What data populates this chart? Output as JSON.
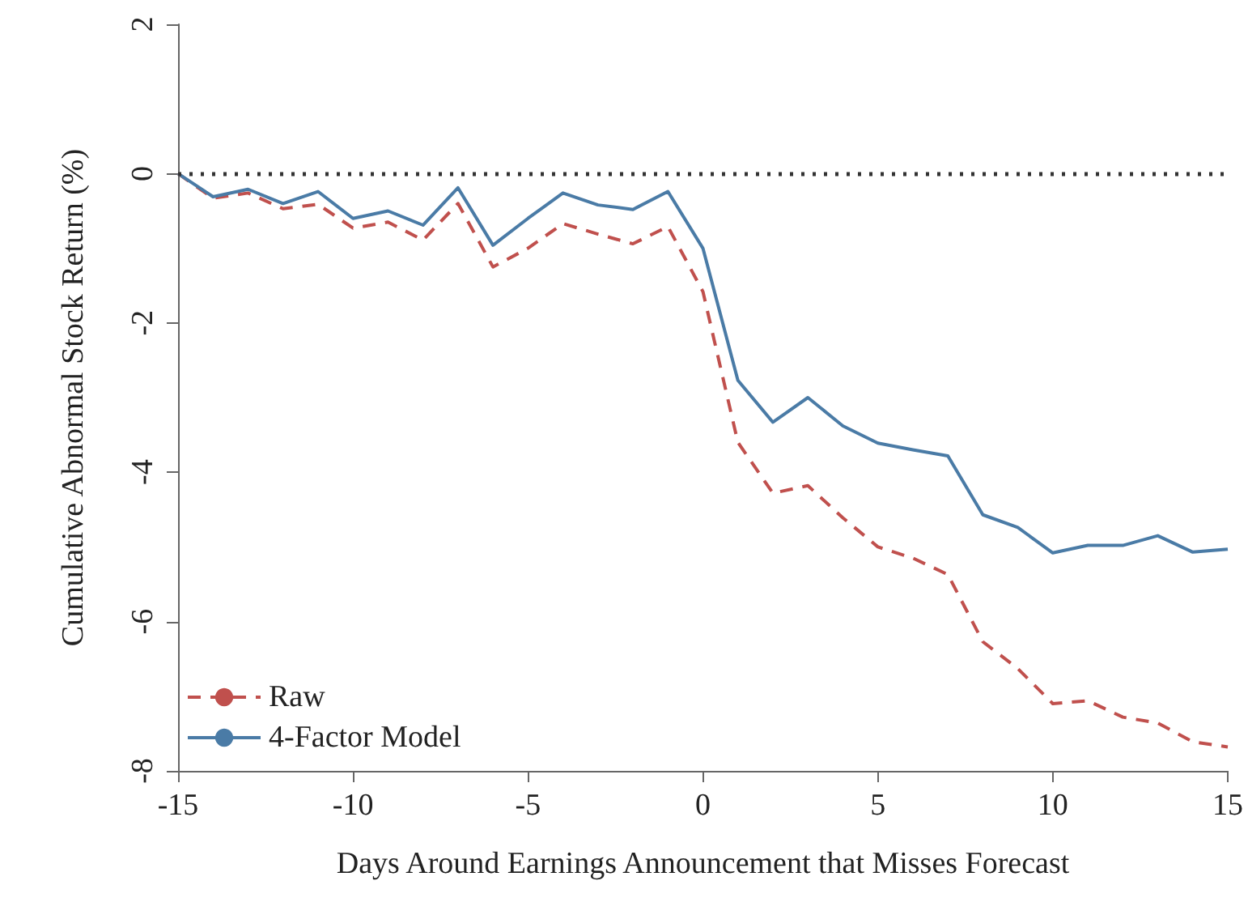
{
  "chart_data": {
    "type": "line",
    "xlabel": "Days Around Earnings Announcement that Misses Forecast",
    "ylabel": "Cumulative Abnormal Stock Return (%)",
    "x": [
      -15,
      -14,
      -13,
      -12,
      -11,
      -10,
      -9,
      -8,
      -7,
      -6,
      -5,
      -4,
      -3,
      -2,
      -1,
      0,
      1,
      2,
      3,
      4,
      5,
      6,
      7,
      8,
      9,
      10,
      11,
      12,
      13,
      14,
      15
    ],
    "series": [
      {
        "name": "Raw",
        "color": "#c0504d",
        "line_style": "dashed",
        "values": [
          0,
          -0.33,
          -0.26,
          -0.47,
          -0.41,
          -0.73,
          -0.65,
          -0.89,
          -0.4,
          -1.25,
          -1.0,
          -0.67,
          -0.81,
          -0.94,
          -0.71,
          -1.58,
          -3.6,
          -4.28,
          -4.18,
          -4.61,
          -5.0,
          -5.15,
          -5.37,
          -6.27,
          -6.63,
          -7.1,
          -7.06,
          -7.28,
          -7.36,
          -7.61,
          -7.68
        ]
      },
      {
        "name": "4-Factor Model",
        "color": "#4a7ba6",
        "line_style": "solid",
        "values": [
          0,
          -0.31,
          -0.21,
          -0.4,
          -0.24,
          -0.6,
          -0.5,
          -0.69,
          -0.19,
          -0.96,
          -0.6,
          -0.26,
          -0.42,
          -0.48,
          -0.24,
          -1.0,
          -2.77,
          -3.33,
          -3.0,
          -3.38,
          -3.61,
          -3.7,
          -3.78,
          -4.57,
          -4.74,
          -5.08,
          -4.98,
          -4.98,
          -4.85,
          -5.07,
          -5.03
        ]
      }
    ],
    "xlim": [
      -15,
      15
    ],
    "xticks": [
      -15,
      -10,
      -5,
      0,
      5,
      10,
      15
    ],
    "ylim": [
      -8,
      2
    ],
    "yticks": [
      -8,
      -6,
      -4,
      -2,
      0,
      2
    ],
    "ref_lines": [
      {
        "axis": "y",
        "value": 0,
        "color": "#333333",
        "line_style": "dotted"
      }
    ],
    "grid": false,
    "legend": "bottom left",
    "marker": "none"
  }
}
